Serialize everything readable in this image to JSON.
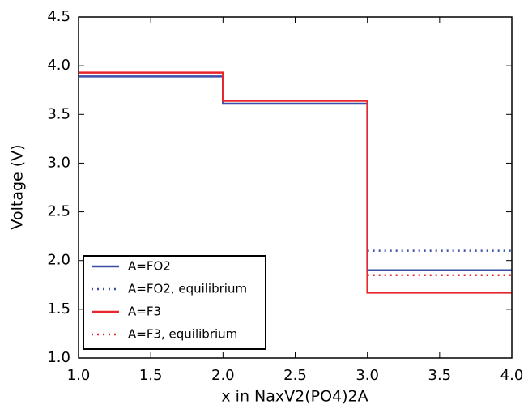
{
  "chart_data": {
    "type": "line",
    "xlabel": "x in NaxV2(PO4)2A",
    "ylabel": "Voltage (V)",
    "x": [
      1.0,
      2.0,
      2.0,
      3.0,
      3.0,
      4.0
    ],
    "series": [
      {
        "name": "A=FO2",
        "color": "#3b4ea8",
        "style": "solid",
        "values": [
          3.89,
          3.89,
          3.61,
          3.61,
          1.9,
          1.9
        ]
      },
      {
        "name": "A=FO2, equilibrium",
        "color": "#3b4ea8",
        "style": "dotted",
        "values": [
          null,
          null,
          null,
          null,
          2.1,
          2.1
        ]
      },
      {
        "name": "A=F3",
        "color": "#e8262b",
        "style": "solid",
        "values": [
          3.93,
          3.93,
          3.64,
          3.64,
          1.67,
          1.67
        ]
      },
      {
        "name": "A=F3, equilibrium",
        "color": "#e8262b",
        "style": "dotted",
        "values": [
          null,
          null,
          null,
          null,
          1.85,
          1.85
        ]
      }
    ],
    "xlim": [
      1.0,
      4.0
    ],
    "ylim": [
      1.0,
      4.5
    ],
    "xticks": [
      {
        "value": 1.0,
        "label": "1.0"
      },
      {
        "value": 1.5,
        "label": "1.5"
      },
      {
        "value": 2.0,
        "label": "2.0"
      },
      {
        "value": 2.5,
        "label": "2.5"
      },
      {
        "value": 3.0,
        "label": "3.0"
      },
      {
        "value": 3.5,
        "label": "3.5"
      },
      {
        "value": 4.0,
        "label": "4.0"
      }
    ],
    "yticks": [
      {
        "value": 1.0,
        "label": "1.0"
      },
      {
        "value": 1.5,
        "label": "1.5"
      },
      {
        "value": 2.0,
        "label": "2.0"
      },
      {
        "value": 2.5,
        "label": "2.5"
      },
      {
        "value": 3.0,
        "label": "3.0"
      },
      {
        "value": 3.5,
        "label": "3.5"
      },
      {
        "value": 4.0,
        "label": "4.0"
      },
      {
        "value": 4.5,
        "label": "4.5"
      }
    ],
    "legend": "lower left"
  }
}
